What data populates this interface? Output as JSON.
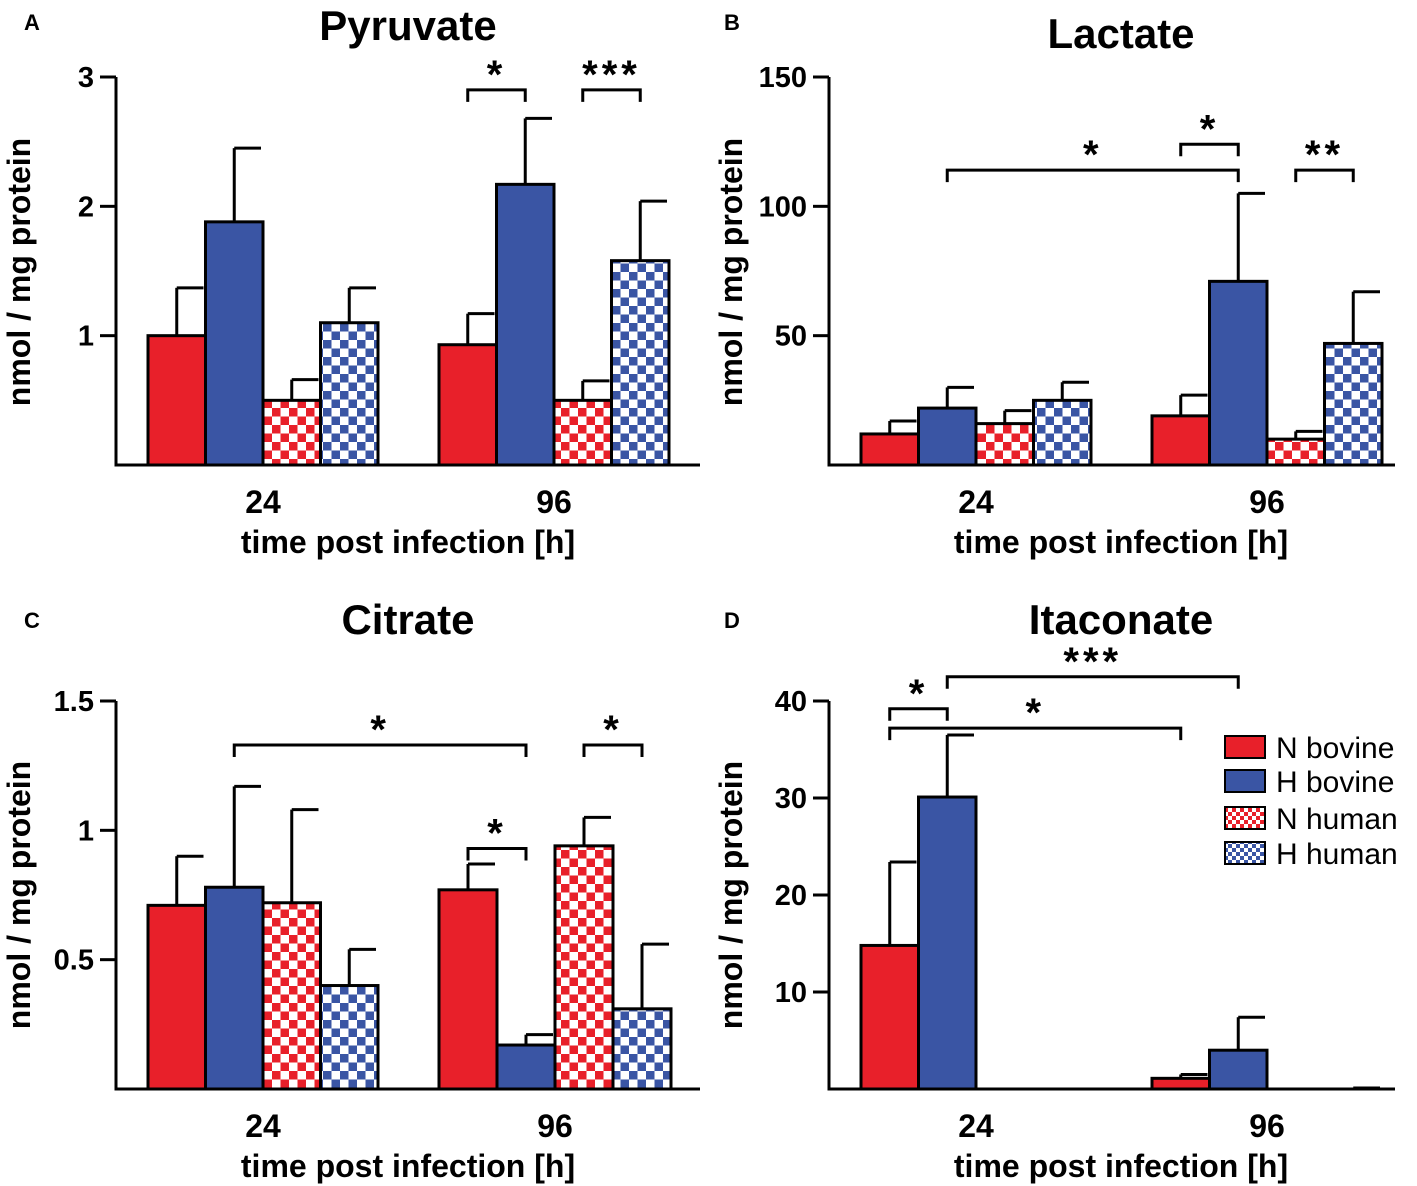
{
  "colors": {
    "n_bovine": "#e8202a",
    "h_bovine": "#3a55a4",
    "checker_light": "#ffffff",
    "axis": "#000000"
  },
  "legend": {
    "items": [
      {
        "label": "N bovine",
        "color": "#e8202a",
        "pattern": "solid"
      },
      {
        "label": "H bovine",
        "color": "#3a55a4",
        "pattern": "solid"
      },
      {
        "label": "N human",
        "color": "#e8202a",
        "pattern": "checker"
      },
      {
        "label": "H human",
        "color": "#3a55a4",
        "pattern": "checker"
      }
    ]
  },
  "chart_data": [
    {
      "panel": "A",
      "type": "bar",
      "title": "Pyruvate",
      "xlabel": "time post infection [h]",
      "ylabel": "nmol / mg protein",
      "categories": [
        "24",
        "96"
      ],
      "ylim": [
        0,
        3
      ],
      "yticks": [
        1,
        2,
        3
      ],
      "ytick_labels": [
        "1",
        "2",
        "3"
      ],
      "series": [
        {
          "name": "N bovine",
          "values": [
            1.0,
            0.93
          ],
          "errors": [
            0.37,
            0.24
          ]
        },
        {
          "name": "H bovine",
          "values": [
            1.88,
            2.17
          ],
          "errors": [
            0.57,
            0.51
          ]
        },
        {
          "name": "N human",
          "values": [
            0.5,
            0.5
          ],
          "errors": [
            0.16,
            0.15
          ]
        },
        {
          "name": "H human",
          "values": [
            1.1,
            1.58
          ],
          "errors": [
            0.27,
            0.46
          ]
        }
      ],
      "significance": [
        {
          "label": "*",
          "from": [
            1,
            0
          ],
          "to": [
            1,
            1
          ],
          "level": 2.9
        },
        {
          "label": "***",
          "from": [
            1,
            2
          ],
          "to": [
            1,
            3
          ],
          "level": 2.9
        }
      ]
    },
    {
      "panel": "B",
      "type": "bar",
      "title": "Lactate",
      "xlabel": "time post infection [h]",
      "ylabel": "nmol / mg protein",
      "categories": [
        "24",
        "96"
      ],
      "ylim": [
        0,
        150
      ],
      "yticks": [
        50,
        100,
        150
      ],
      "ytick_labels": [
        "50",
        "100",
        "150"
      ],
      "series": [
        {
          "name": "N bovine",
          "values": [
            12,
            19
          ],
          "errors": [
            5,
            8
          ]
        },
        {
          "name": "H bovine",
          "values": [
            22,
            71
          ],
          "errors": [
            8,
            34
          ]
        },
        {
          "name": "N human",
          "values": [
            16,
            10
          ],
          "errors": [
            5,
            3
          ]
        },
        {
          "name": "H human",
          "values": [
            25,
            47
          ],
          "errors": [
            7,
            20
          ]
        }
      ],
      "significance": [
        {
          "label": "*",
          "from": [
            0,
            1
          ],
          "to": [
            1,
            1
          ],
          "level": 114
        },
        {
          "label": "*",
          "from": [
            1,
            0
          ],
          "to": [
            1,
            1
          ],
          "level": 124
        },
        {
          "label": "**",
          "from": [
            1,
            2
          ],
          "to": [
            1,
            3
          ],
          "level": 114
        }
      ]
    },
    {
      "panel": "C",
      "type": "bar",
      "title": "Citrate",
      "xlabel": "time post infection [h]",
      "ylabel": "nmol / mg protein",
      "categories": [
        "24",
        "96"
      ],
      "ylim": [
        0,
        1.5
      ],
      "yticks": [
        0.5,
        1,
        1.5
      ],
      "ytick_labels": [
        "0.5",
        "1",
        "1.5"
      ],
      "series": [
        {
          "name": "N bovine",
          "values": [
            0.71,
            0.77
          ],
          "errors": [
            0.19,
            0.1
          ]
        },
        {
          "name": "H bovine",
          "values": [
            0.78,
            0.17
          ],
          "errors": [
            0.39,
            0.04
          ]
        },
        {
          "name": "N human",
          "values": [
            0.72,
            0.94
          ],
          "errors": [
            0.36,
            0.11
          ]
        },
        {
          "name": "H human",
          "values": [
            0.4,
            0.31
          ],
          "errors": [
            0.14,
            0.25
          ]
        }
      ],
      "significance": [
        {
          "label": "*",
          "from": [
            0,
            1
          ],
          "to": [
            1,
            1
          ],
          "level": 1.33
        },
        {
          "label": "*",
          "from": [
            1,
            0
          ],
          "to": [
            1,
            1
          ],
          "level": 0.93
        },
        {
          "label": "*",
          "from": [
            1,
            2
          ],
          "to": [
            1,
            3
          ],
          "level": 1.33
        }
      ]
    },
    {
      "panel": "D",
      "type": "bar",
      "title": "Itaconate",
      "xlabel": "time post infection [h]",
      "ylabel": "nmol / mg protein",
      "categories": [
        "24",
        "96"
      ],
      "ylim": [
        0,
        40
      ],
      "yticks": [
        10,
        20,
        30,
        40
      ],
      "ytick_labels": [
        "10",
        "20",
        "30",
        "40"
      ],
      "series": [
        {
          "name": "N bovine",
          "values": [
            14.8,
            1.1
          ],
          "errors": [
            8.6,
            0.4
          ]
        },
        {
          "name": "H bovine",
          "values": [
            30.1,
            4.0
          ],
          "errors": [
            6.4,
            3.4
          ]
        },
        {
          "name": "N human",
          "values": [
            0.0,
            0.0
          ],
          "errors": [
            0,
            0
          ]
        },
        {
          "name": "H human",
          "values": [
            0.0,
            0.0
          ],
          "errors": [
            0,
            0.1
          ]
        }
      ],
      "significance": [
        {
          "label": "*",
          "from": [
            0,
            0
          ],
          "to": [
            0,
            1
          ],
          "level": 39.2
        },
        {
          "label": "***",
          "from": [
            0,
            1
          ],
          "to": [
            1,
            1
          ],
          "level": 42.5
        },
        {
          "label": "*",
          "from": [
            0,
            0
          ],
          "to": [
            1,
            0
          ],
          "level": 37.2
        }
      ]
    }
  ]
}
